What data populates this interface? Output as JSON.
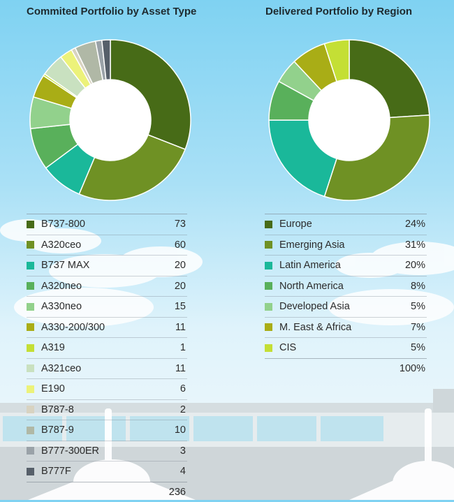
{
  "chart_data": [
    {
      "type": "pie",
      "title": "Commited Portfolio by Asset Type",
      "categories": [
        "B737-800",
        "A320ceo",
        "B737 MAX",
        "A320neo",
        "A330neo",
        "A330-200/300",
        "A319",
        "A321ceo",
        "E190",
        "B787-8",
        "B787-9",
        "B777-300ER",
        "B777F"
      ],
      "values": [
        73,
        60,
        20,
        20,
        15,
        11,
        1,
        11,
        6,
        2,
        10,
        3,
        4
      ],
      "value_labels": [
        "73",
        "60",
        "20",
        "20",
        "15",
        "11",
        "1",
        "11",
        "6",
        "2",
        "10",
        "3",
        "4"
      ],
      "colors": [
        "#476b17",
        "#6f9124",
        "#1ab89a",
        "#59b05b",
        "#92d18c",
        "#a9ad16",
        "#c4df35",
        "#c9e1c0",
        "#ecf27a",
        "#d8d3c1",
        "#b0b8a6",
        "#9aa2a8",
        "#565f6a"
      ],
      "total_label": "236",
      "legend": "below"
    },
    {
      "type": "pie",
      "title": "Delivered Portfolio by Region",
      "categories": [
        "Europe",
        "Emerging Asia",
        "Latin America",
        "North America",
        "Developed Asia",
        "M. East & Africa",
        "CIS"
      ],
      "values": [
        24,
        31,
        20,
        8,
        5,
        7,
        5
      ],
      "value_labels": [
        "24%",
        "31%",
        "20%",
        "8%",
        "5%",
        "7%",
        "5%"
      ],
      "colors": [
        "#476b17",
        "#6f9124",
        "#1ab89a",
        "#59b05b",
        "#92d18c",
        "#a9ad16",
        "#c4df35"
      ],
      "total_label": "100%",
      "legend": "below"
    }
  ]
}
